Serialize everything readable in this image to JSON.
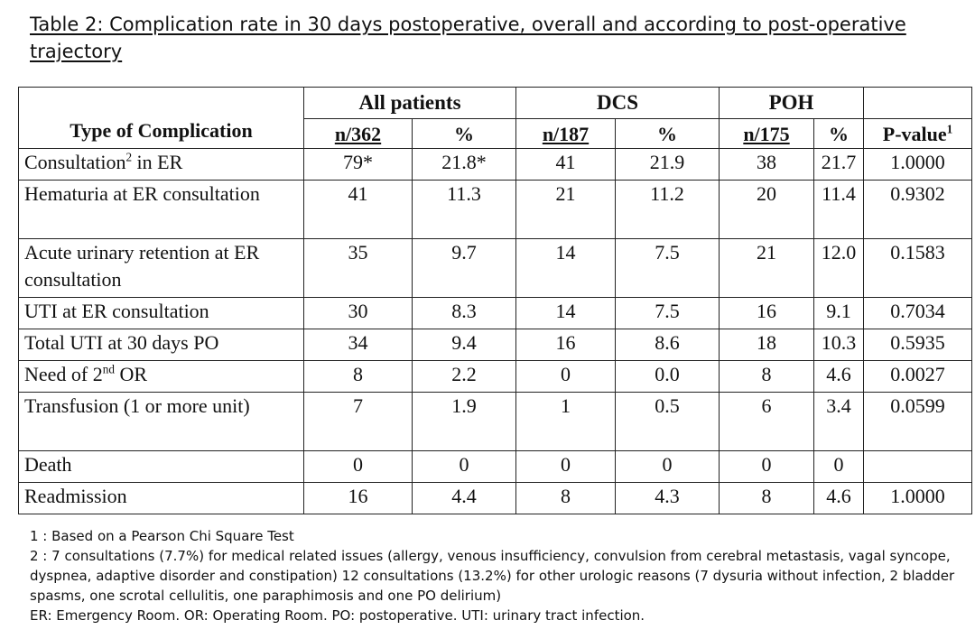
{
  "caption": "Table 2: Complication rate in 30 days postoperative, overall and according to post-operative trajectory",
  "table": {
    "groups": [
      "All patients",
      "DCS",
      "POH"
    ],
    "type_header": "Type of Complication",
    "subheaders": [
      "n/362",
      "%",
      "n/187",
      "%",
      "n/175",
      "%",
      "P-value"
    ],
    "pvalue_sup": "1",
    "rows": [
      {
        "label": "Consultation",
        "label_sup": "2",
        "label_after": " in ER",
        "values": [
          "79*",
          "21.8*",
          "41",
          "21.9",
          "38",
          "21.7",
          "1.0000"
        ]
      },
      {
        "label": "Hematuria at ER consultation",
        "values": [
          "41",
          "11.3",
          "21",
          "11.2",
          "20",
          "11.4",
          "0.9302"
        ]
      },
      {
        "label": "Acute urinary retention at ER consultation",
        "values": [
          "35",
          "9.7",
          "14",
          "7.5",
          "21",
          "12.0",
          "0.1583"
        ]
      },
      {
        "label": "UTI at ER consultation",
        "values": [
          "30",
          "8.3",
          "14",
          "7.5",
          "16",
          "9.1",
          "0.7034"
        ]
      },
      {
        "label": "Total UTI at 30 days PO",
        "values": [
          "34",
          "9.4",
          "16",
          "8.6",
          "18",
          "10.3",
          "0.5935"
        ]
      },
      {
        "label": "Need of 2",
        "label_sup": "nd",
        "label_after": " OR",
        "values": [
          "8",
          "2.2",
          "0",
          "0.0",
          "8",
          "4.6",
          "0.0027"
        ]
      },
      {
        "label": "Transfusion (1 or more unit)",
        "values": [
          "7",
          "1.9",
          "1",
          "0.5",
          "6",
          "3.4",
          "0.0599"
        ]
      },
      {
        "label": "Death",
        "values": [
          "0",
          "0",
          "0",
          "0",
          "0",
          "0",
          ""
        ]
      },
      {
        "label": "Readmission",
        "values": [
          "16",
          "4.4",
          "8",
          "4.3",
          "8",
          "4.6",
          "1.0000"
        ]
      }
    ]
  },
  "footnotes": [
    "1 : Based on a Pearson Chi Square Test",
    "2 : 7 consultations (7.7%) for medical related issues (allergy, venous insufficiency, convulsion from cerebral metastasis, vagal syncope, dyspnea, adaptive disorder and constipation) 12 consultations (13.2%) for other urologic reasons (7 dysuria without infection, 2 bladder spasms, one scrotal cellulitis, one paraphimosis and one PO delirium)",
    "ER: Emergency Room. OR: Operating Room. PO: postoperative. UTI: urinary tract infection."
  ]
}
